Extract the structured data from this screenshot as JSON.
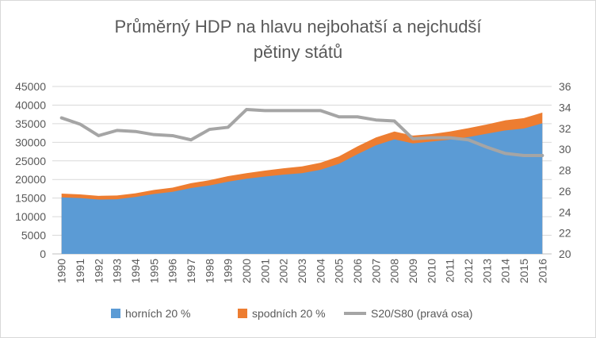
{
  "chart_data": {
    "type": "area",
    "title_line1": "Průměrný HDP na hlavu nejbohatší a nejchudší",
    "title_line2": "pětiny států",
    "categories": [
      "1990",
      "1991",
      "1992",
      "1993",
      "1994",
      "1995",
      "1996",
      "1997",
      "1998",
      "1999",
      "2000",
      "2001",
      "2002",
      "2003",
      "2004",
      "2005",
      "2006",
      "2007",
      "2008",
      "2009",
      "2010",
      "2011",
      "2012",
      "2013",
      "2014",
      "2015",
      "2016"
    ],
    "series": [
      {
        "name": "horních 20 %",
        "color": "#5b9bd5",
        "values": [
          15200,
          15000,
          14600,
          14700,
          15300,
          16100,
          16700,
          17700,
          18400,
          19400,
          20200,
          20800,
          21300,
          21700,
          22600,
          24200,
          26800,
          29200,
          30800,
          29700,
          30200,
          30700,
          31400,
          32300,
          33200,
          33700,
          35100
        ]
      },
      {
        "name": "spodních 20 %",
        "color": "#ed7d31",
        "values": [
          1000,
          1000,
          1000,
          1000,
          1000,
          1100,
          1100,
          1300,
          1400,
          1500,
          1500,
          1600,
          1700,
          1800,
          1900,
          2000,
          2100,
          2100,
          2100,
          2100,
          2000,
          2200,
          2400,
          2500,
          2700,
          2800,
          2900
        ]
      },
      {
        "name": "S20/S80 (pravá osa)",
        "color": "#a5a5a5",
        "axis": "right",
        "values": [
          33.0,
          32.4,
          31.3,
          31.8,
          31.7,
          31.4,
          31.3,
          30.9,
          31.9,
          32.1,
          33.8,
          33.7,
          33.7,
          33.7,
          33.7,
          33.1,
          33.1,
          32.8,
          32.7,
          31.0,
          31.1,
          31.1,
          30.9,
          30.2,
          29.6,
          29.4,
          29.4
        ]
      }
    ],
    "y_left": {
      "min": 0,
      "max": 45000,
      "step": 5000,
      "ticks": [
        "0",
        "5000",
        "10000",
        "15000",
        "20000",
        "25000",
        "30000",
        "35000",
        "40000",
        "45000"
      ]
    },
    "y_right": {
      "min": 20,
      "max": 36,
      "step": 2,
      "ticks": [
        "20",
        "22",
        "24",
        "26",
        "28",
        "30",
        "32",
        "34",
        "36"
      ]
    },
    "legend_position": "bottom",
    "grid": "horizontal"
  }
}
